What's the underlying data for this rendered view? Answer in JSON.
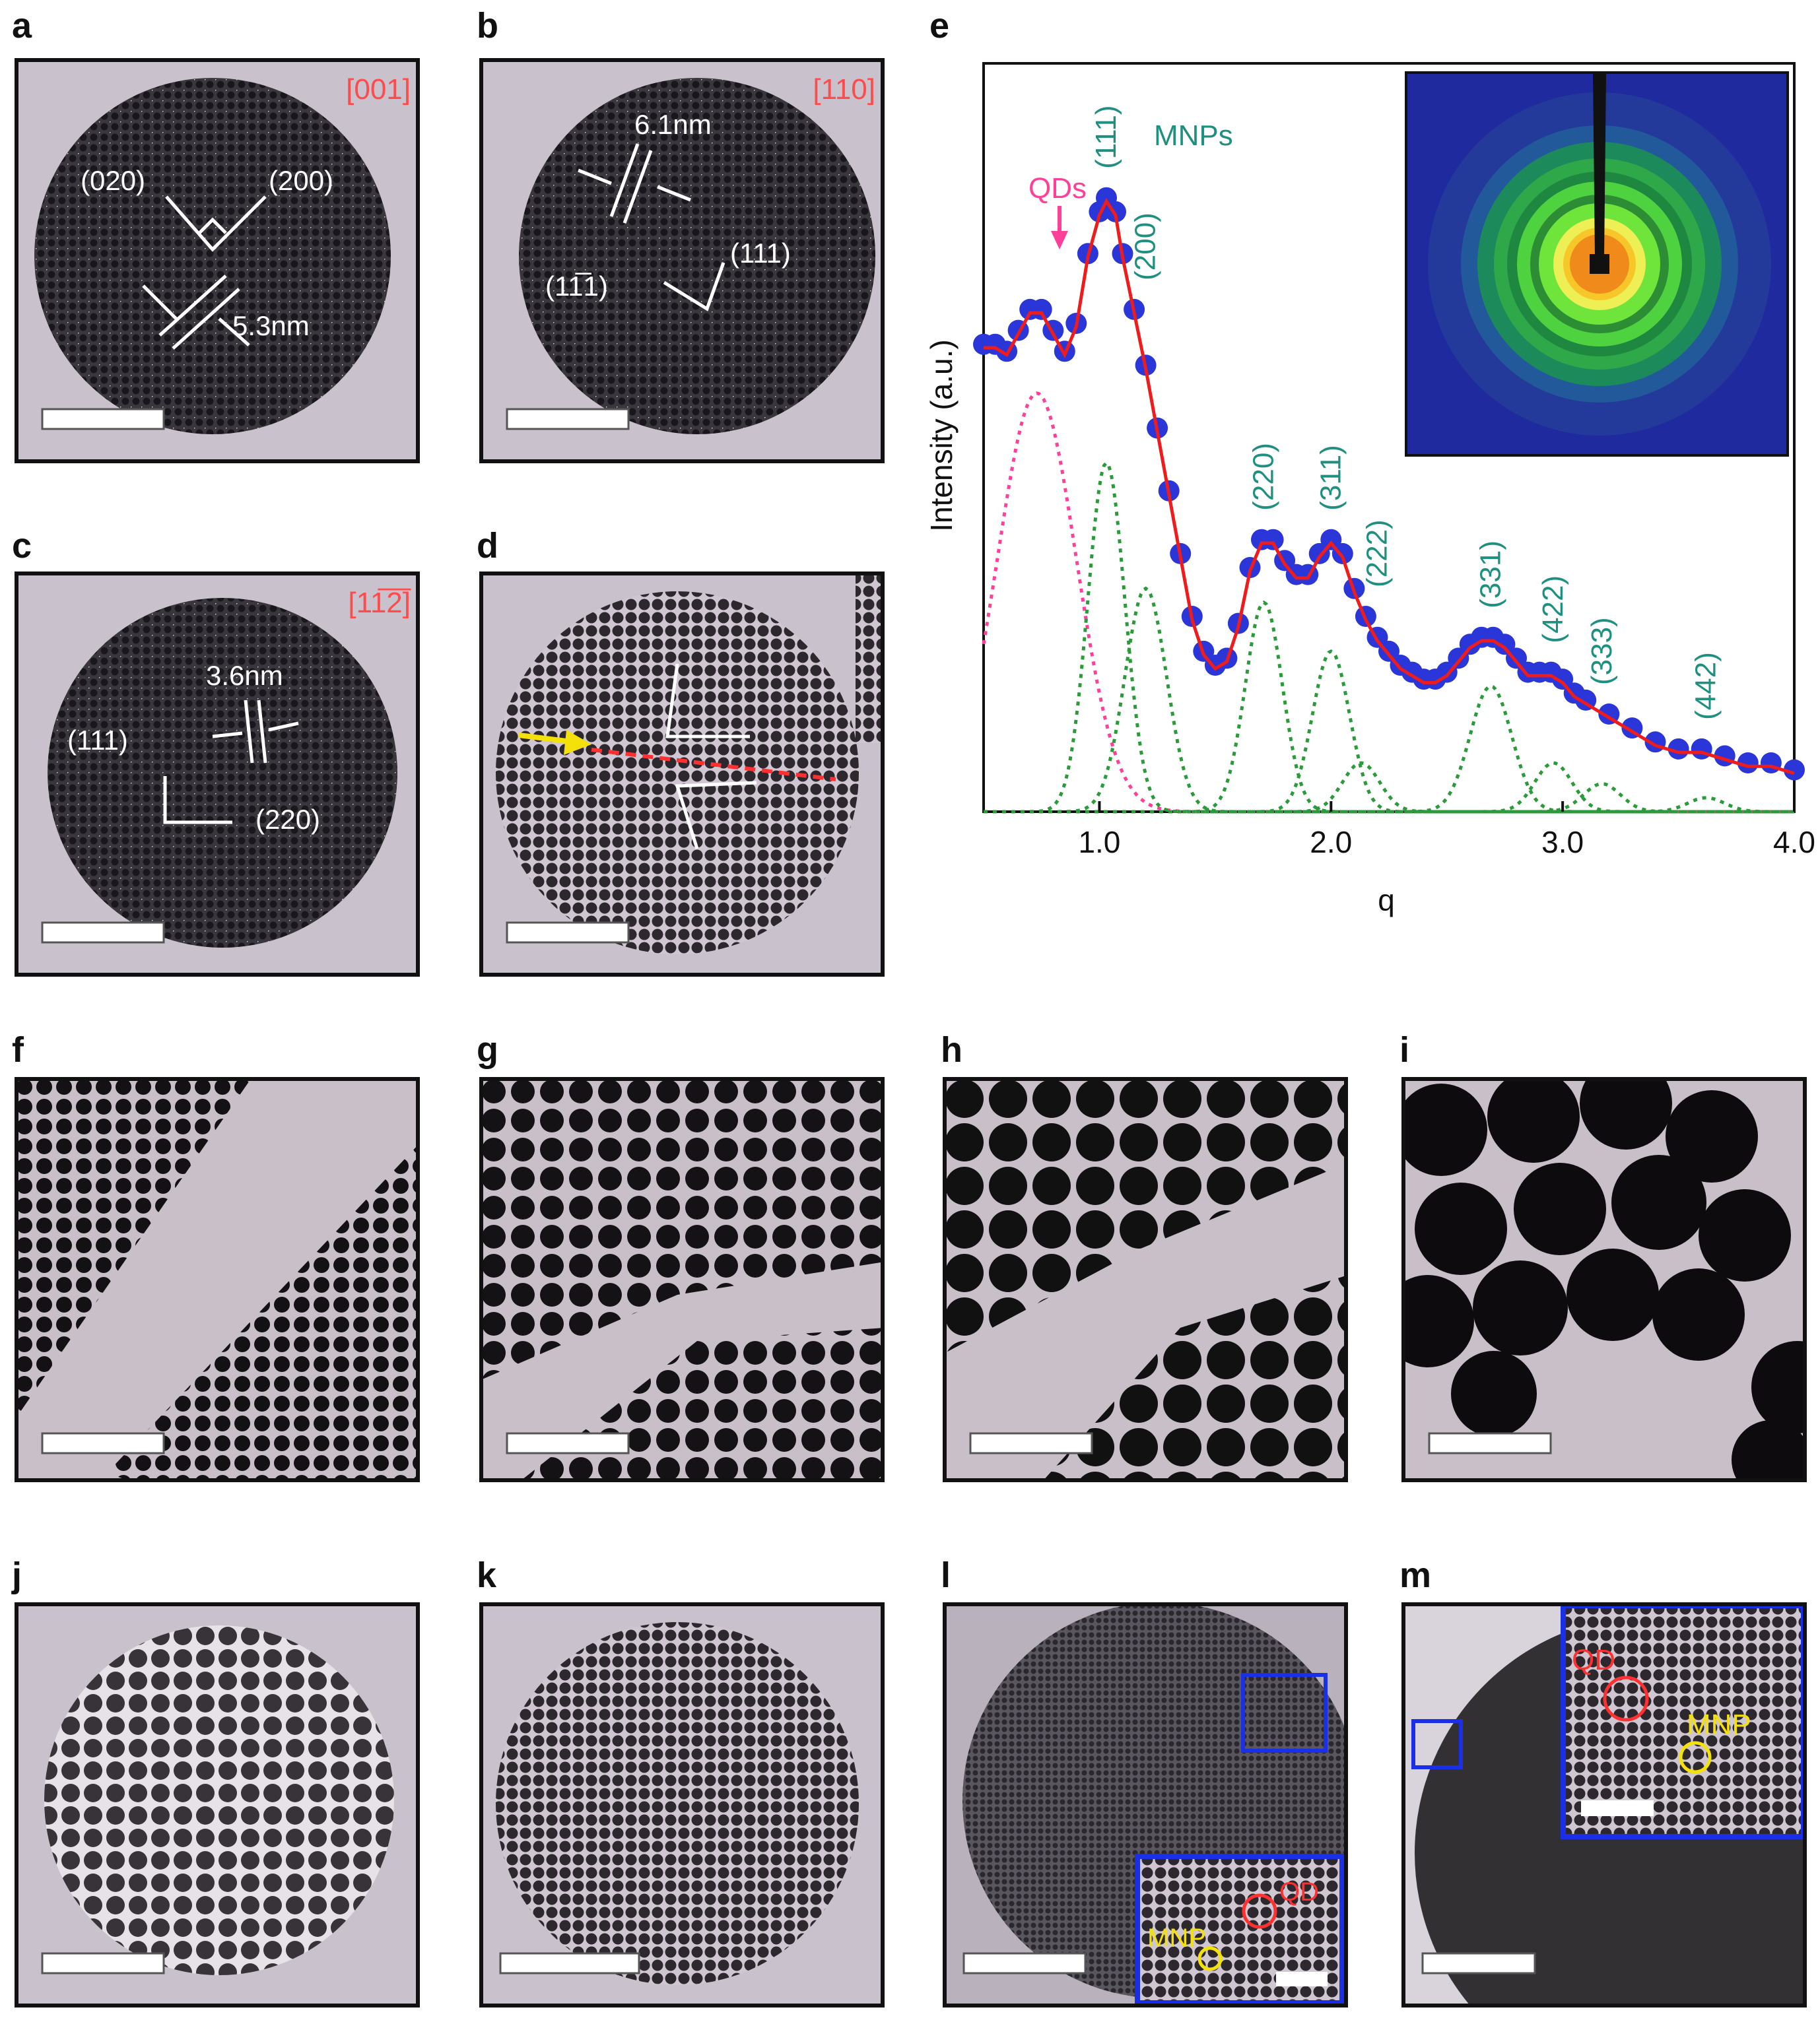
{
  "panel_labels": {
    "a": "a",
    "b": "b",
    "c": "c",
    "d": "d",
    "e": "e",
    "f": "f",
    "g": "g",
    "h": "h",
    "i": "i",
    "j": "j",
    "k": "k",
    "l": "l",
    "m": "m"
  },
  "panel_a": {
    "zone": "[001]",
    "plane1": "(020)",
    "plane2": "(200)",
    "spacing": "5.3nm"
  },
  "panel_b": {
    "zone": "[110]",
    "spacing": "6.1nm",
    "plane1": "(11̅1)",
    "plane2": "(111)"
  },
  "panel_c": {
    "zone": "[11̅2̅]",
    "spacing": "3.6nm",
    "plane1": "(111)",
    "plane2": "(220)"
  },
  "panel_l": {
    "qd_label": "QD",
    "mnp_label": "MNP"
  },
  "panel_m": {
    "qd_label": "QD",
    "mnp_label": "MNP"
  },
  "colors": {
    "accent_red": "#ff4b4b",
    "teal": "#1f8f80",
    "magenta": "#ff3f9a",
    "data_blue": "#2a36d8",
    "fit_red": "#ee1c1c",
    "box_blue": "#1b2fe6",
    "yellow": "#f5e10a"
  },
  "chart_data": {
    "type": "line",
    "xlabel": "q",
    "ylabel": "Intensity (a.u.)",
    "xlim": [
      0.5,
      4.0
    ],
    "ylim": [
      0,
      1.05
    ],
    "xticks": [
      "1.0",
      "2.0",
      "3.0",
      "4.0"
    ],
    "xtick_values": [
      1.0,
      2.0,
      3.0,
      4.0
    ],
    "annotations": {
      "qds": "QDs",
      "mnps": "MNPs"
    },
    "series": [
      {
        "name": "QDs",
        "style": "dotted",
        "peaks": [
          {
            "q": 0.73,
            "h": 0.6,
            "w": 0.17
          }
        ]
      },
      {
        "name": "MNPs",
        "style": "dotted",
        "peaks": [
          {
            "q": 1.03,
            "h": 0.5,
            "w": 0.08
          },
          {
            "q": 1.2,
            "h": 0.32,
            "w": 0.09
          },
          {
            "q": 1.71,
            "h": 0.3,
            "w": 0.08
          },
          {
            "q": 2.0,
            "h": 0.23,
            "w": 0.08
          },
          {
            "q": 2.13,
            "h": 0.07,
            "w": 0.08
          },
          {
            "q": 2.69,
            "h": 0.18,
            "w": 0.09
          },
          {
            "q": 2.96,
            "h": 0.07,
            "w": 0.08
          },
          {
            "q": 3.17,
            "h": 0.04,
            "w": 0.08
          },
          {
            "q": 3.62,
            "h": 0.02,
            "w": 0.08
          }
        ]
      }
    ],
    "peak_labels": [
      {
        "label": "(111)",
        "q": 1.03
      },
      {
        "label": "(200)",
        "q": 1.2
      },
      {
        "label": "(220)",
        "q": 1.71
      },
      {
        "label": "(311)",
        "q": 2.0
      },
      {
        "label": "(222)",
        "q": 2.2
      },
      {
        "label": "(331)",
        "q": 2.69
      },
      {
        "label": "(422)",
        "q": 2.96
      },
      {
        "label": "(333)",
        "q": 3.17
      },
      {
        "label": "(442)",
        "q": 3.62
      }
    ],
    "data_points": [
      [
        0.5,
        0.67
      ],
      [
        0.55,
        0.67
      ],
      [
        0.6,
        0.66
      ],
      [
        0.65,
        0.69
      ],
      [
        0.7,
        0.72
      ],
      [
        0.75,
        0.72
      ],
      [
        0.8,
        0.69
      ],
      [
        0.85,
        0.66
      ],
      [
        0.9,
        0.7
      ],
      [
        0.95,
        0.8
      ],
      [
        1.0,
        0.86
      ],
      [
        1.03,
        0.88
      ],
      [
        1.07,
        0.86
      ],
      [
        1.1,
        0.8
      ],
      [
        1.15,
        0.72
      ],
      [
        1.2,
        0.64
      ],
      [
        1.25,
        0.55
      ],
      [
        1.3,
        0.46
      ],
      [
        1.35,
        0.37
      ],
      [
        1.4,
        0.28
      ],
      [
        1.45,
        0.23
      ],
      [
        1.5,
        0.21
      ],
      [
        1.55,
        0.22
      ],
      [
        1.6,
        0.27
      ],
      [
        1.65,
        0.35
      ],
      [
        1.7,
        0.39
      ],
      [
        1.75,
        0.39
      ],
      [
        1.8,
        0.36
      ],
      [
        1.85,
        0.34
      ],
      [
        1.9,
        0.34
      ],
      [
        1.95,
        0.37
      ],
      [
        2.0,
        0.39
      ],
      [
        2.05,
        0.37
      ],
      [
        2.1,
        0.32
      ],
      [
        2.15,
        0.28
      ],
      [
        2.2,
        0.25
      ],
      [
        2.25,
        0.23
      ],
      [
        2.3,
        0.21
      ],
      [
        2.35,
        0.2
      ],
      [
        2.4,
        0.19
      ],
      [
        2.45,
        0.19
      ],
      [
        2.5,
        0.2
      ],
      [
        2.55,
        0.22
      ],
      [
        2.6,
        0.24
      ],
      [
        2.65,
        0.25
      ],
      [
        2.7,
        0.25
      ],
      [
        2.75,
        0.24
      ],
      [
        2.8,
        0.22
      ],
      [
        2.85,
        0.2
      ],
      [
        2.9,
        0.2
      ],
      [
        2.95,
        0.2
      ],
      [
        3.0,
        0.19
      ],
      [
        3.05,
        0.17
      ],
      [
        3.1,
        0.16
      ],
      [
        3.2,
        0.14
      ],
      [
        3.3,
        0.12
      ],
      [
        3.4,
        0.1
      ],
      [
        3.5,
        0.09
      ],
      [
        3.6,
        0.09
      ],
      [
        3.7,
        0.08
      ],
      [
        3.8,
        0.07
      ],
      [
        3.9,
        0.07
      ],
      [
        4.0,
        0.06
      ]
    ]
  }
}
